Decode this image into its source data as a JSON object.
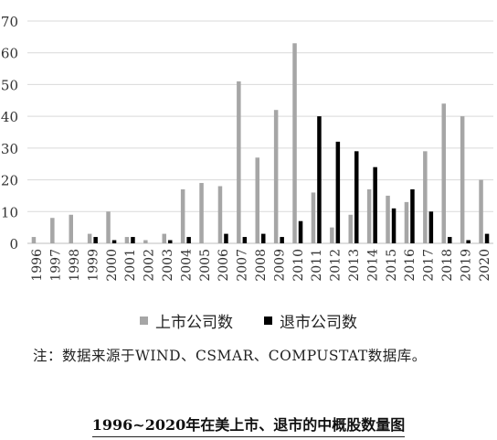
{
  "chart_data": {
    "type": "bar",
    "categories": [
      "1996",
      "1997",
      "1998",
      "1999",
      "2000",
      "2001",
      "2002",
      "2003",
      "2004",
      "2005",
      "2006",
      "2007",
      "2008",
      "2009",
      "2010",
      "2011",
      "2012",
      "2013",
      "2014",
      "2015",
      "2016",
      "2017",
      "2018",
      "2019",
      "2020"
    ],
    "series": [
      {
        "name": "上市公司数",
        "color": "#a6a6a6",
        "values": [
          2,
          8,
          9,
          3,
          10,
          2,
          1,
          3,
          17,
          19,
          18,
          51,
          27,
          42,
          63,
          16,
          5,
          9,
          17,
          15,
          13,
          29,
          44,
          40,
          20
        ]
      },
      {
        "name": "退市公司数",
        "color": "#000000",
        "values": [
          0,
          0,
          0,
          2,
          1,
          2,
          0,
          1,
          2,
          0,
          3,
          2,
          3,
          2,
          7,
          40,
          32,
          29,
          24,
          11,
          17,
          10,
          2,
          1,
          3
        ]
      }
    ],
    "ylim": [
      0,
      70
    ],
    "yticks": [
      "0",
      "10",
      "20",
      "30",
      "40",
      "50",
      "60",
      "70"
    ],
    "grid": "horizontal",
    "legend": "bottom-center"
  },
  "note": "注：数据来源于WIND、CSMAR、COMPUSTAT数据库。",
  "figure_title": "1996~2020年在美上市、退市的中概股数量图"
}
